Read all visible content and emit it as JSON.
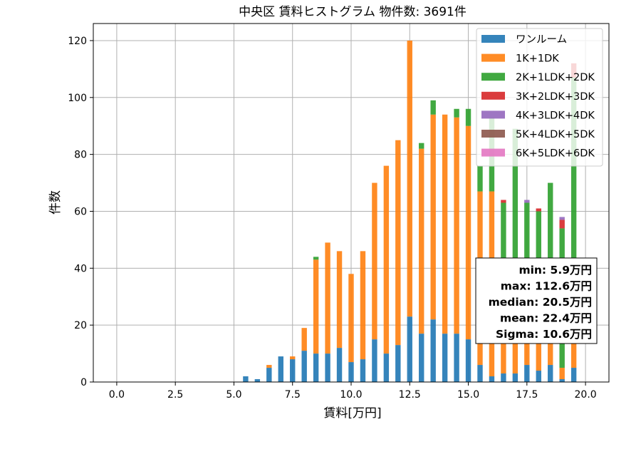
{
  "chart_data": {
    "type": "bar",
    "stacked": true,
    "title": "中央区 賃料ヒストグラム  物件数: 3691件",
    "xlabel": "賃料[万円]",
    "ylabel": "件数",
    "xlim": [
      -1.0,
      21.0
    ],
    "ylim": [
      0,
      126
    ],
    "xticks": [
      0.0,
      2.5,
      5.0,
      7.5,
      10.0,
      12.5,
      15.0,
      17.5,
      20.0
    ],
    "xtick_labels": [
      "0.0",
      "2.5",
      "5.0",
      "7.5",
      "10.0",
      "12.5",
      "15.0",
      "17.5",
      "20.0"
    ],
    "yticks": [
      0,
      20,
      40,
      60,
      80,
      100,
      120
    ],
    "ytick_labels": [
      "0",
      "20",
      "40",
      "60",
      "80",
      "100",
      "120"
    ],
    "grid": true,
    "legend_position": "top-right",
    "bin_width": 0.25,
    "bins": [
      5.5,
      5.75,
      6.0,
      6.25,
      6.5,
      6.75,
      7.0,
      7.25,
      7.5,
      7.75,
      8.0,
      8.25,
      8.5,
      8.75,
      9.0,
      9.25,
      9.5,
      9.75,
      10.0,
      10.25,
      10.5,
      10.75,
      11.0,
      11.25,
      11.5,
      11.75,
      12.0,
      12.25,
      12.5,
      12.75,
      13.0,
      13.25,
      13.5,
      13.75,
      14.0,
      14.25,
      14.5,
      14.75,
      15.0,
      15.25,
      15.5,
      15.75,
      16.0,
      16.25,
      16.5,
      16.75,
      17.0,
      17.25,
      17.5,
      17.75,
      18.0,
      18.25,
      18.5,
      18.75,
      19.0,
      19.25,
      19.5,
      19.75
    ],
    "series": [
      {
        "name": "ワンルーム",
        "color": "#1f77b4",
        "values": [
          2,
          0,
          1,
          0,
          5,
          0,
          9,
          0,
          8,
          0,
          11,
          0,
          10,
          0,
          10,
          0,
          12,
          0,
          7,
          0,
          8,
          0,
          15,
          0,
          10,
          0,
          13,
          0,
          23,
          0,
          17,
          0,
          22,
          0,
          17,
          0,
          17,
          0,
          15,
          0,
          6,
          0,
          2,
          0,
          3,
          0,
          3,
          0,
          6,
          0,
          4,
          0,
          6,
          0,
          1,
          0,
          5,
          0
        ]
      },
      {
        "name": "1K+1DK",
        "color": "#ff7f0e",
        "values": [
          0,
          0,
          0,
          0,
          1,
          0,
          0,
          0,
          1,
          0,
          8,
          0,
          33,
          0,
          39,
          0,
          34,
          0,
          31,
          0,
          38,
          0,
          55,
          0,
          66,
          0,
          72,
          0,
          97,
          0,
          65,
          0,
          72,
          0,
          77,
          0,
          76,
          0,
          75,
          0,
          61,
          0,
          65,
          0,
          25,
          0,
          38,
          0,
          21,
          0,
          14,
          0,
          15,
          0,
          4,
          0,
          20,
          0
        ]
      },
      {
        "name": "2K+1LDK+2DK",
        "color": "#2ca02c",
        "values": [
          0,
          0,
          0,
          0,
          0,
          0,
          0,
          0,
          0,
          0,
          0,
          0,
          1,
          0,
          0,
          0,
          0,
          0,
          0,
          0,
          0,
          0,
          0,
          0,
          0,
          0,
          0,
          0,
          0,
          0,
          2,
          0,
          5,
          0,
          0,
          0,
          3,
          0,
          6,
          0,
          9,
          0,
          26,
          0,
          35,
          0,
          48,
          0,
          36,
          0,
          42,
          0,
          49,
          0,
          49,
          0,
          82,
          0
        ]
      },
      {
        "name": "3K+2LDK+3DK",
        "color": "#d62728",
        "values": [
          0,
          0,
          0,
          0,
          0,
          0,
          0,
          0,
          0,
          0,
          0,
          0,
          0,
          0,
          0,
          0,
          0,
          0,
          0,
          0,
          0,
          0,
          0,
          0,
          0,
          0,
          0,
          0,
          0,
          0,
          0,
          0,
          0,
          0,
          0,
          0,
          0,
          0,
          0,
          0,
          0,
          0,
          0,
          0,
          1,
          0,
          0,
          0,
          0,
          0,
          1,
          0,
          0,
          0,
          3,
          0,
          5,
          0
        ]
      },
      {
        "name": "4K+3LDK+4DK",
        "color": "#9467bd",
        "values": [
          0,
          0,
          0,
          0,
          0,
          0,
          0,
          0,
          0,
          0,
          0,
          0,
          0,
          0,
          0,
          0,
          0,
          0,
          0,
          0,
          0,
          0,
          0,
          0,
          0,
          0,
          0,
          0,
          0,
          0,
          0,
          0,
          0,
          0,
          0,
          0,
          0,
          0,
          0,
          0,
          0,
          0,
          0,
          0,
          0,
          0,
          0,
          0,
          1,
          0,
          0,
          0,
          0,
          0,
          1,
          0,
          0,
          0
        ]
      },
      {
        "name": "5K+4LDK+5DK",
        "color": "#8c564b",
        "values": [
          0,
          0,
          0,
          0,
          0,
          0,
          0,
          0,
          0,
          0,
          0,
          0,
          0,
          0,
          0,
          0,
          0,
          0,
          0,
          0,
          0,
          0,
          0,
          0,
          0,
          0,
          0,
          0,
          0,
          0,
          0,
          0,
          0,
          0,
          0,
          0,
          0,
          0,
          0,
          0,
          0,
          0,
          0,
          0,
          0,
          0,
          0,
          0,
          0,
          0,
          0,
          0,
          0,
          0,
          0,
          0,
          0,
          0
        ]
      },
      {
        "name": "6K+5LDK+6DK",
        "color": "#e377c2",
        "values": [
          0,
          0,
          0,
          0,
          0,
          0,
          0,
          0,
          0,
          0,
          0,
          0,
          0,
          0,
          0,
          0,
          0,
          0,
          0,
          0,
          0,
          0,
          0,
          0,
          0,
          0,
          0,
          0,
          0,
          0,
          0,
          0,
          0,
          0,
          0,
          0,
          0,
          0,
          0,
          0,
          0,
          0,
          0,
          0,
          0,
          0,
          0,
          0,
          0,
          0,
          0,
          0,
          0,
          0,
          0,
          0,
          0,
          0
        ]
      }
    ],
    "stats": [
      "min: 5.9万円",
      "max: 112.6万円",
      "median: 20.5万円",
      "mean: 22.4万円",
      "Sigma: 10.6万円"
    ]
  }
}
